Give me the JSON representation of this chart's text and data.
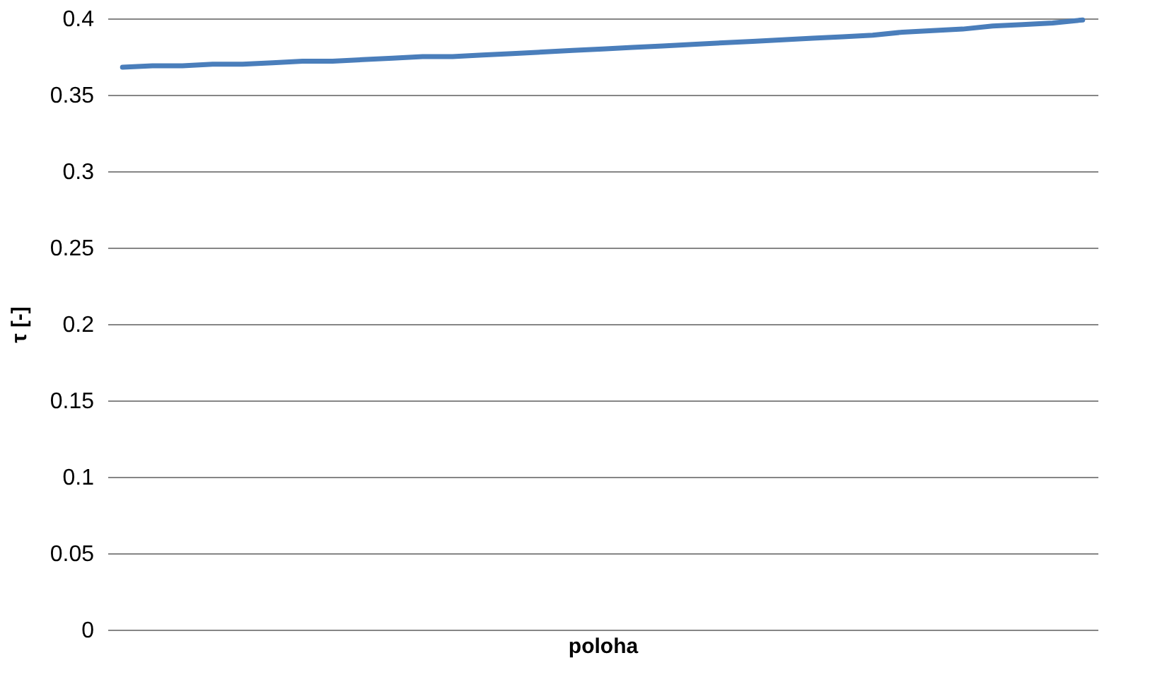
{
  "chart_data": {
    "type": "line",
    "xlabel": "poloha",
    "ylabel": "τ [-]",
    "categories": [
      null,
      null,
      null,
      null,
      null,
      null,
      null,
      null,
      null,
      null,
      null,
      null,
      null,
      null,
      null,
      null,
      null,
      null,
      null,
      null,
      null,
      null,
      null,
      null,
      null,
      null,
      null,
      null,
      null,
      null,
      null,
      null,
      null
    ],
    "series": [
      {
        "color": "#4a7ebb",
        "values": [
          0.368,
          0.369,
          0.369,
          0.37,
          0.37,
          0.371,
          0.372,
          0.372,
          0.373,
          0.374,
          0.375,
          0.375,
          0.376,
          0.377,
          0.378,
          0.379,
          0.38,
          0.381,
          0.382,
          0.383,
          0.384,
          0.385,
          0.386,
          0.387,
          0.388,
          0.389,
          0.391,
          0.392,
          0.393,
          0.395,
          0.396,
          0.397,
          0.399
        ]
      }
    ],
    "ylim": [
      0,
      0.4
    ],
    "yticks": [
      0,
      0.05,
      0.1,
      0.15,
      0.2,
      0.25,
      0.3,
      0.35,
      0.4
    ],
    "grid": "y",
    "tick_labels": "y",
    "marker": "none",
    "line_style": "solid"
  }
}
